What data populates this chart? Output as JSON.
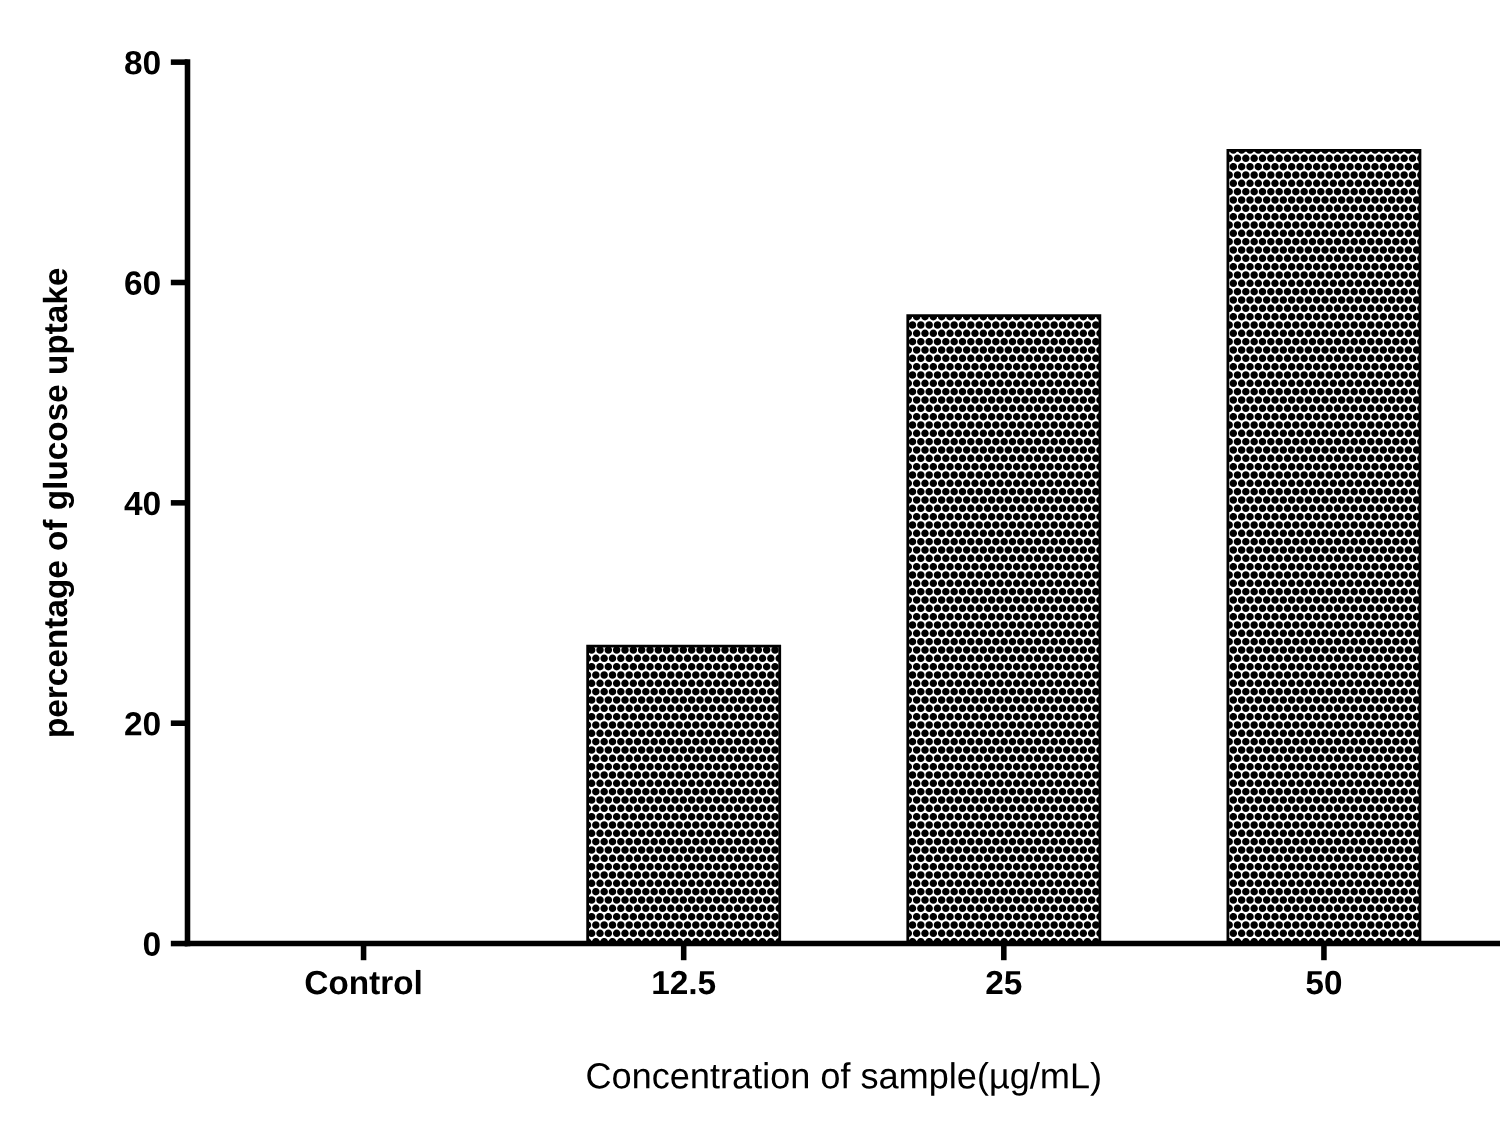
{
  "chart_data": {
    "type": "bar",
    "xlabel": "Concentration of sample(µg/mL)",
    "ylabel": "percentage of glucose uptake",
    "categories": [
      "Control",
      "12.5",
      "25",
      "50"
    ],
    "values": [
      0,
      27,
      57,
      72
    ],
    "color": "#000000",
    "ylim": [
      0,
      80
    ],
    "yticks": [
      0,
      20,
      40,
      60,
      80
    ],
    "grid": false
  }
}
